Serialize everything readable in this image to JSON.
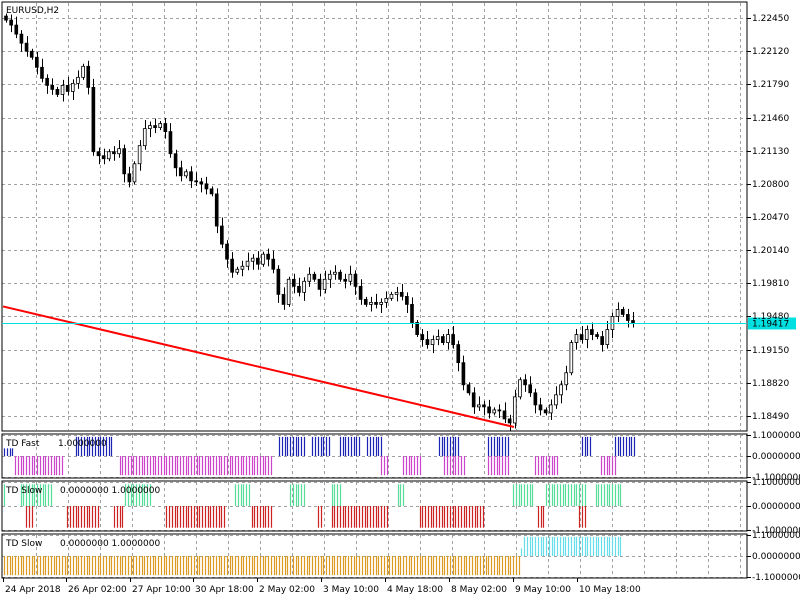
{
  "chart_data": [
    {
      "type": "candlestick",
      "title": "EURUSD,H2",
      "ylim": [
        1.1834,
        1.2261
      ],
      "price_ticks": [
        "1.22450",
        "1.22120",
        "1.21790",
        "1.21460",
        "1.21130",
        "1.20800",
        "1.20470",
        "1.20140",
        "1.19810",
        "1.19480",
        "1.19150",
        "1.18820",
        "1.18490"
      ],
      "current_price": "1.19417",
      "current_price_value": 1.19417,
      "close_series": [
        1.2243,
        1.2238,
        1.2229,
        1.222,
        1.2212,
        1.2206,
        1.2196,
        1.2185,
        1.2178,
        1.2174,
        1.2169,
        1.2178,
        1.2172,
        1.218,
        1.2186,
        1.2197,
        1.2176,
        1.2112,
        1.2108,
        1.2105,
        1.2112,
        1.211,
        1.2115,
        1.209,
        1.2082,
        1.21,
        1.2118,
        1.2135,
        1.2138,
        1.2136,
        1.214,
        1.2132,
        1.211,
        1.2096,
        1.2088,
        1.2092,
        1.2083,
        1.2082,
        1.208,
        1.2075,
        1.207,
        1.2038,
        1.202,
        1.2005,
        1.1992,
        1.1995,
        1.1998,
        1.2003,
        1.2006,
        1.2,
        1.201,
        1.2005,
        1.1995,
        1.197,
        1.196,
        1.1985,
        1.1978,
        1.1972,
        1.1983,
        1.199,
        1.1985,
        1.1975,
        1.1985,
        1.199,
        1.1992,
        1.1985,
        1.1983,
        1.199,
        1.1978,
        1.1965,
        1.196,
        1.1962,
        1.196,
        1.1962,
        1.1966,
        1.197,
        1.1972,
        1.1968,
        1.196,
        1.1942,
        1.193,
        1.1925,
        1.192,
        1.1925,
        1.1928,
        1.1922,
        1.193,
        1.192,
        1.1902,
        1.188,
        1.1872,
        1.1858,
        1.186,
        1.1858,
        1.1852,
        1.1855,
        1.1854,
        1.1846,
        1.1842,
        1.1868,
        1.1885,
        1.188,
        1.1872,
        1.186,
        1.1855,
        1.1852,
        1.186,
        1.187,
        1.188,
        1.1892,
        1.1922,
        1.193,
        1.1925,
        1.1935,
        1.193,
        1.1928,
        1.192,
        1.1935,
        1.1948,
        1.1955,
        1.195,
        1.1944,
        1.1941
      ],
      "trendline": {
        "color": "#ff0000",
        "start_price": 1.1958,
        "end_price": 1.1838
      }
    },
    {
      "type": "bar",
      "title": "TD Fast",
      "values_text": "1.0000000",
      "ylim": [
        -1.15,
        1.15
      ],
      "ticks": [
        "1.1000000",
        "0.0000000",
        "-1.1000000"
      ],
      "positive_color": "#1c24b4",
      "negative_color": "#cc44cc",
      "segments": [
        {
          "start": 0,
          "end": 4,
          "value": 0.4
        },
        {
          "start": 4,
          "end": 22,
          "value": -1
        },
        {
          "start": 26,
          "end": 40,
          "value": 1
        },
        {
          "start": 42,
          "end": 98,
          "value": -1
        },
        {
          "start": 100,
          "end": 110,
          "value": 1
        },
        {
          "start": 112,
          "end": 119,
          "value": 1
        },
        {
          "start": 122,
          "end": 130,
          "value": 1
        },
        {
          "start": 132,
          "end": 138,
          "value": 1
        },
        {
          "start": 137,
          "end": 140,
          "value": -1
        },
        {
          "start": 145,
          "end": 152,
          "value": -1
        },
        {
          "start": 158,
          "end": 166,
          "value": 1
        },
        {
          "start": 160,
          "end": 168,
          "value": -1
        },
        {
          "start": 176,
          "end": 184,
          "value": 1
        },
        {
          "start": 176,
          "end": 184,
          "value": -1
        },
        {
          "start": 193,
          "end": 202,
          "value": -1
        },
        {
          "start": 210,
          "end": 214,
          "value": 1
        },
        {
          "start": 217,
          "end": 223,
          "value": -1
        },
        {
          "start": 222,
          "end": 230,
          "value": 1
        }
      ]
    },
    {
      "type": "bar",
      "title": "TD Slow",
      "values_text": "0.0000000 1.0000000",
      "ylim": [
        -1.15,
        1.15
      ],
      "ticks": [
        "1.1000000",
        "0.0000000",
        "-1.1000000"
      ],
      "positive_color": "#55dd99",
      "negative_color": "#cc2222",
      "segments": [
        {
          "start": 0,
          "end": 1,
          "value": 1
        },
        {
          "start": 8,
          "end": 11,
          "value": -1
        },
        {
          "start": 6,
          "end": 18,
          "value": 1
        },
        {
          "start": 23,
          "end": 35,
          "value": -1
        },
        {
          "start": 40,
          "end": 44,
          "value": -1
        },
        {
          "start": 44,
          "end": 54,
          "value": 1
        },
        {
          "start": 59,
          "end": 81,
          "value": -1
        },
        {
          "start": 84,
          "end": 90,
          "value": 1
        },
        {
          "start": 90,
          "end": 98,
          "value": -1
        },
        {
          "start": 104,
          "end": 110,
          "value": 1
        },
        {
          "start": 114,
          "end": 116,
          "value": -1
        },
        {
          "start": 119,
          "end": 123,
          "value": 1
        },
        {
          "start": 119,
          "end": 131,
          "value": -1
        },
        {
          "start": 131,
          "end": 140,
          "value": -1
        },
        {
          "start": 143,
          "end": 146,
          "value": 1
        },
        {
          "start": 151,
          "end": 157,
          "value": -1
        },
        {
          "start": 157,
          "end": 175,
          "value": -1
        },
        {
          "start": 185,
          "end": 193,
          "value": 1
        },
        {
          "start": 194,
          "end": 197,
          "value": -1
        },
        {
          "start": 197,
          "end": 212,
          "value": 1
        },
        {
          "start": 209,
          "end": 212,
          "value": -1
        },
        {
          "start": 215,
          "end": 225,
          "value": 1
        }
      ]
    },
    {
      "type": "bar",
      "title": "TD Slow",
      "values_text": "0.0000000 1.0000000",
      "ylim": [
        -1.15,
        1.15
      ],
      "ticks": [
        "1.1000000",
        "0.0000000",
        "-1.1000000"
      ],
      "positive_color": "#66dde8",
      "negative_color": "#dd9922",
      "segments": [
        {
          "start": 0,
          "end": 188,
          "value": -1
        },
        {
          "start": 188,
          "end": 189,
          "value": 0.4
        },
        {
          "start": 189,
          "end": 225,
          "value": 1
        }
      ]
    }
  ],
  "x_axis_labels": [
    "24 Apr 2018",
    "26 Apr 02:00",
    "27 Apr 10:00",
    "30 Apr 18:00",
    "2 May 02:00",
    "3 May 10:00",
    "4 May 18:00",
    "8 May 02:00",
    "9 May 10:00",
    "10 May 18:00"
  ],
  "colors": {
    "grid": "#a0a0a0",
    "current_price_line": "#00e0e0",
    "candle": "#000000"
  }
}
